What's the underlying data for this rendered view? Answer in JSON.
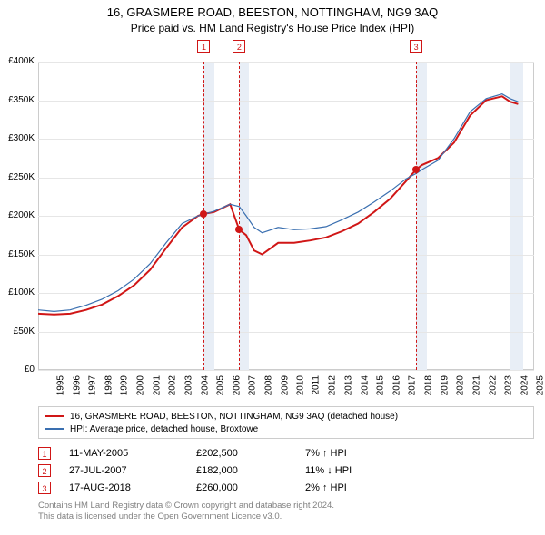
{
  "title_line1": "16, GRASMERE ROAD, BEESTON, NOTTINGHAM, NG9 3AQ",
  "title_line2": "Price paid vs. HM Land Registry's House Price Index (HPI)",
  "chart": {
    "type": "line",
    "background_color": "#ffffff",
    "border_color": "#cccccc",
    "grid_color": "#e6e6e6",
    "xlim_years": [
      1995,
      2026
    ],
    "ylim": [
      0,
      400000
    ],
    "ytick_step": 50000,
    "yticks": [
      {
        "v": 0,
        "label": "£0"
      },
      {
        "v": 50000,
        "label": "£50K"
      },
      {
        "v": 100000,
        "label": "£100K"
      },
      {
        "v": 150000,
        "label": "£150K"
      },
      {
        "v": 200000,
        "label": "£200K"
      },
      {
        "v": 250000,
        "label": "£250K"
      },
      {
        "v": 300000,
        "label": "£300K"
      },
      {
        "v": 350000,
        "label": "£350K"
      },
      {
        "v": 400000,
        "label": "£400K"
      }
    ],
    "xticks": [
      1995,
      1996,
      1997,
      1998,
      1999,
      2000,
      2001,
      2002,
      2003,
      2004,
      2005,
      2006,
      2007,
      2008,
      2009,
      2010,
      2011,
      2012,
      2013,
      2014,
      2015,
      2016,
      2017,
      2018,
      2019,
      2020,
      2021,
      2022,
      2023,
      2024,
      2025
    ],
    "bands": [
      {
        "from": 2005.36,
        "to": 2006.0,
        "color": "#e8eef6"
      },
      {
        "from": 2007.57,
        "to": 2008.2,
        "color": "#e8eef6"
      },
      {
        "from": 2018.63,
        "to": 2019.3,
        "color": "#e8eef6"
      },
      {
        "from": 2024.5,
        "to": 2025.3,
        "color": "#e8eef6"
      }
    ],
    "series": [
      {
        "name": "property",
        "color": "#d01616",
        "width": 2,
        "points": [
          [
            1995.0,
            73000
          ],
          [
            1996.0,
            72000
          ],
          [
            1997.0,
            73000
          ],
          [
            1998.0,
            78000
          ],
          [
            1999.0,
            85000
          ],
          [
            2000.0,
            96000
          ],
          [
            2001.0,
            110000
          ],
          [
            2002.0,
            130000
          ],
          [
            2003.0,
            158000
          ],
          [
            2004.0,
            185000
          ],
          [
            2005.0,
            200000
          ],
          [
            2005.36,
            202500
          ],
          [
            2006.0,
            205000
          ],
          [
            2007.0,
            215000
          ],
          [
            2007.57,
            182000
          ],
          [
            2008.0,
            175000
          ],
          [
            2008.5,
            155000
          ],
          [
            2009.0,
            150000
          ],
          [
            2010.0,
            165000
          ],
          [
            2011.0,
            165000
          ],
          [
            2012.0,
            168000
          ],
          [
            2013.0,
            172000
          ],
          [
            2014.0,
            180000
          ],
          [
            2015.0,
            190000
          ],
          [
            2016.0,
            205000
          ],
          [
            2017.0,
            222000
          ],
          [
            2018.0,
            245000
          ],
          [
            2018.63,
            260000
          ],
          [
            2019.0,
            266000
          ],
          [
            2020.0,
            275000
          ],
          [
            2021.0,
            295000
          ],
          [
            2022.0,
            330000
          ],
          [
            2023.0,
            350000
          ],
          [
            2024.0,
            355000
          ],
          [
            2024.5,
            348000
          ],
          [
            2025.0,
            345000
          ]
        ]
      },
      {
        "name": "hpi",
        "color": "#3a6fb0",
        "width": 1.2,
        "points": [
          [
            1995.0,
            78000
          ],
          [
            1996.0,
            76000
          ],
          [
            1997.0,
            78000
          ],
          [
            1998.0,
            84000
          ],
          [
            1999.0,
            92000
          ],
          [
            2000.0,
            103000
          ],
          [
            2001.0,
            118000
          ],
          [
            2002.0,
            138000
          ],
          [
            2003.0,
            165000
          ],
          [
            2004.0,
            190000
          ],
          [
            2005.0,
            200000
          ],
          [
            2006.0,
            206000
          ],
          [
            2007.0,
            215000
          ],
          [
            2007.57,
            212000
          ],
          [
            2008.0,
            200000
          ],
          [
            2008.5,
            185000
          ],
          [
            2009.0,
            178000
          ],
          [
            2010.0,
            185000
          ],
          [
            2011.0,
            182000
          ],
          [
            2012.0,
            183000
          ],
          [
            2013.0,
            186000
          ],
          [
            2014.0,
            195000
          ],
          [
            2015.0,
            205000
          ],
          [
            2016.0,
            218000
          ],
          [
            2017.0,
            232000
          ],
          [
            2018.0,
            248000
          ],
          [
            2018.63,
            255000
          ],
          [
            2019.0,
            260000
          ],
          [
            2020.0,
            272000
          ],
          [
            2021.0,
            300000
          ],
          [
            2022.0,
            335000
          ],
          [
            2023.0,
            352000
          ],
          [
            2024.0,
            358000
          ],
          [
            2024.5,
            352000
          ],
          [
            2025.0,
            348000
          ]
        ]
      }
    ],
    "sale_markers": [
      {
        "n": "1",
        "year": 2005.36,
        "price": 202500,
        "color": "#d01616"
      },
      {
        "n": "2",
        "year": 2007.57,
        "price": 182000,
        "color": "#d01616"
      },
      {
        "n": "3",
        "year": 2018.63,
        "price": 260000,
        "color": "#d01616"
      }
    ],
    "marker_box_top_offset": -24
  },
  "legend": {
    "items": [
      {
        "color": "#d01616",
        "label": "16, GRASMERE ROAD, BEESTON, NOTTINGHAM, NG9 3AQ (detached house)"
      },
      {
        "color": "#3a6fb0",
        "label": "HPI: Average price, detached house, Broxtowe"
      }
    ]
  },
  "sales": [
    {
      "n": "1",
      "date": "11-MAY-2005",
      "price": "£202,500",
      "hpi": "7% ↑ HPI",
      "color": "#d01616"
    },
    {
      "n": "2",
      "date": "27-JUL-2007",
      "price": "£182,000",
      "hpi": "11% ↓ HPI",
      "color": "#d01616"
    },
    {
      "n": "3",
      "date": "17-AUG-2018",
      "price": "£260,000",
      "hpi": "2% ↑ HPI",
      "color": "#d01616"
    }
  ],
  "footer": {
    "line1": "Contains HM Land Registry data © Crown copyright and database right 2024.",
    "line2": "This data is licensed under the Open Government Licence v3.0."
  }
}
